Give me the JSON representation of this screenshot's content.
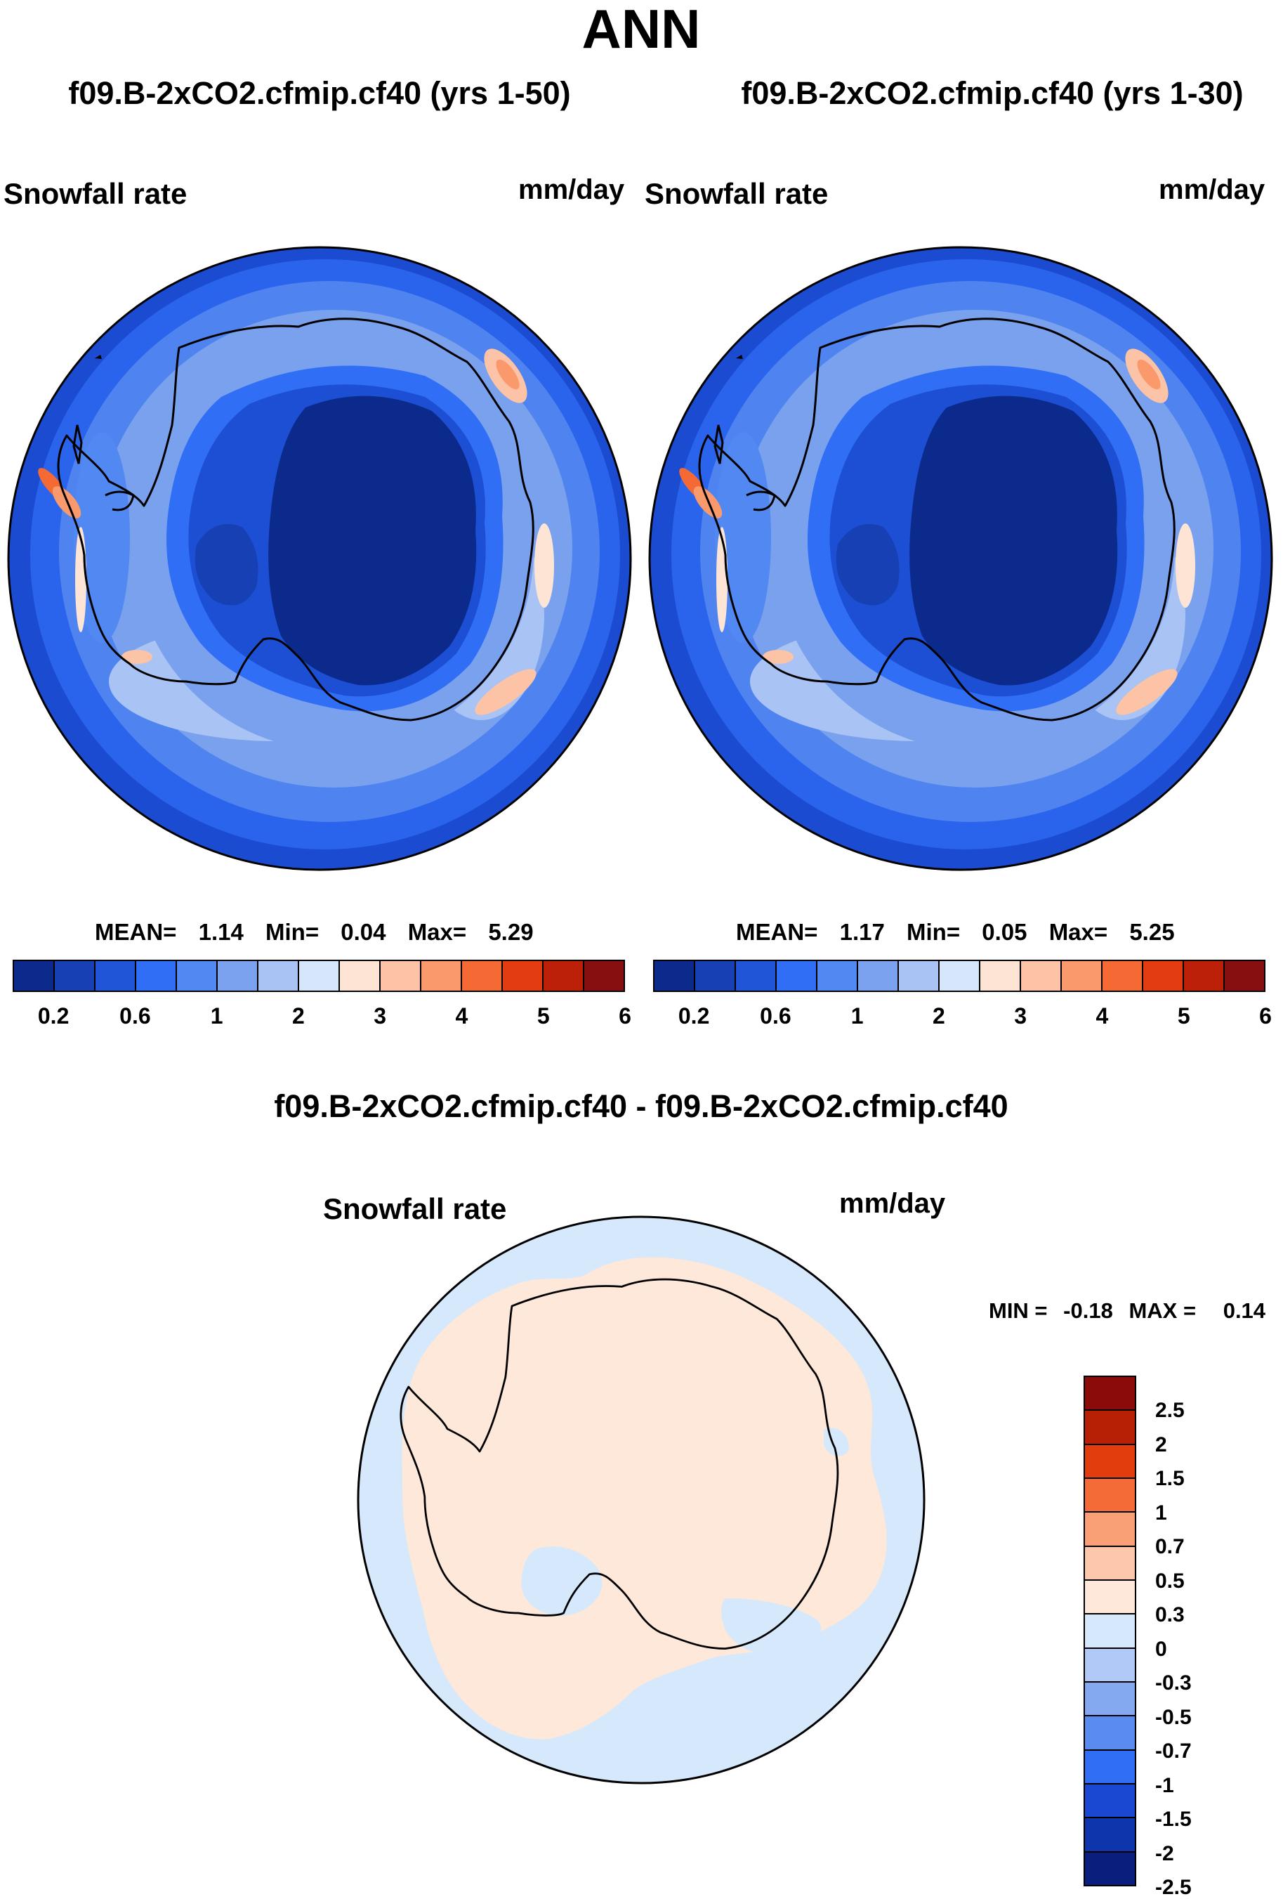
{
  "title": "ANN",
  "panels": [
    {
      "case": "f09.B-2xCO2.cfmip.cf40 (yrs 1-50)",
      "variable": "Snowfall rate",
      "units": "mm/day",
      "stats": {
        "mean_label": "MEAN=",
        "mean": "1.14",
        "min_label": "Min=",
        "min": "0.04",
        "max_label": "Max=",
        "max": "5.29"
      }
    },
    {
      "case": "f09.B-2xCO2.cfmip.cf40 (yrs 1-30)",
      "variable": "Snowfall rate",
      "units": "mm/day",
      "stats": {
        "mean_label": "MEAN=",
        "mean": "1.17",
        "min_label": "Min=",
        "min": "0.05",
        "max_label": "Max=",
        "max": "5.25"
      }
    }
  ],
  "colorbar": {
    "colors": [
      "#0b2a8c",
      "#1640b4",
      "#1f55d6",
      "#2f6ef5",
      "#5288f2",
      "#7ba2ee",
      "#a9c3f4",
      "#d6e6fb",
      "#fde4d4",
      "#fcc3a6",
      "#fa9a6c",
      "#f56a34",
      "#e33b12",
      "#bd2008",
      "#880f0f"
    ],
    "labels": [
      "0.2",
      "0.6",
      "1",
      "2",
      "3",
      "4",
      "5",
      "6"
    ]
  },
  "difference": {
    "title": "f09.B-2xCO2.cfmip.cf40 - f09.B-2xCO2.cfmip.cf40",
    "variable": "Snowfall rate",
    "units": "mm/day",
    "stats": {
      "min_label": "MIN =",
      "min": "-0.18",
      "max_label": "MAX =",
      "max": "0.14"
    },
    "colorbar": {
      "colors": [
        "#8b0b0b",
        "#b82006",
        "#e23d0d",
        "#f56b38",
        "#f9a077",
        "#fcc7ab",
        "#fde8d9",
        "#d6e8fb",
        "#b0c9f6",
        "#85a9f0",
        "#5a8cf0",
        "#2f6ef5",
        "#1a48d3",
        "#0f35ad",
        "#0a1f7d"
      ],
      "labels": [
        "2.5",
        "2",
        "1.5",
        "1",
        "0.7",
        "0.5",
        "0.3",
        "0",
        "-0.3",
        "-0.5",
        "-0.7",
        "-1",
        "-1.5",
        "-2",
        "-2.5"
      ]
    }
  }
}
